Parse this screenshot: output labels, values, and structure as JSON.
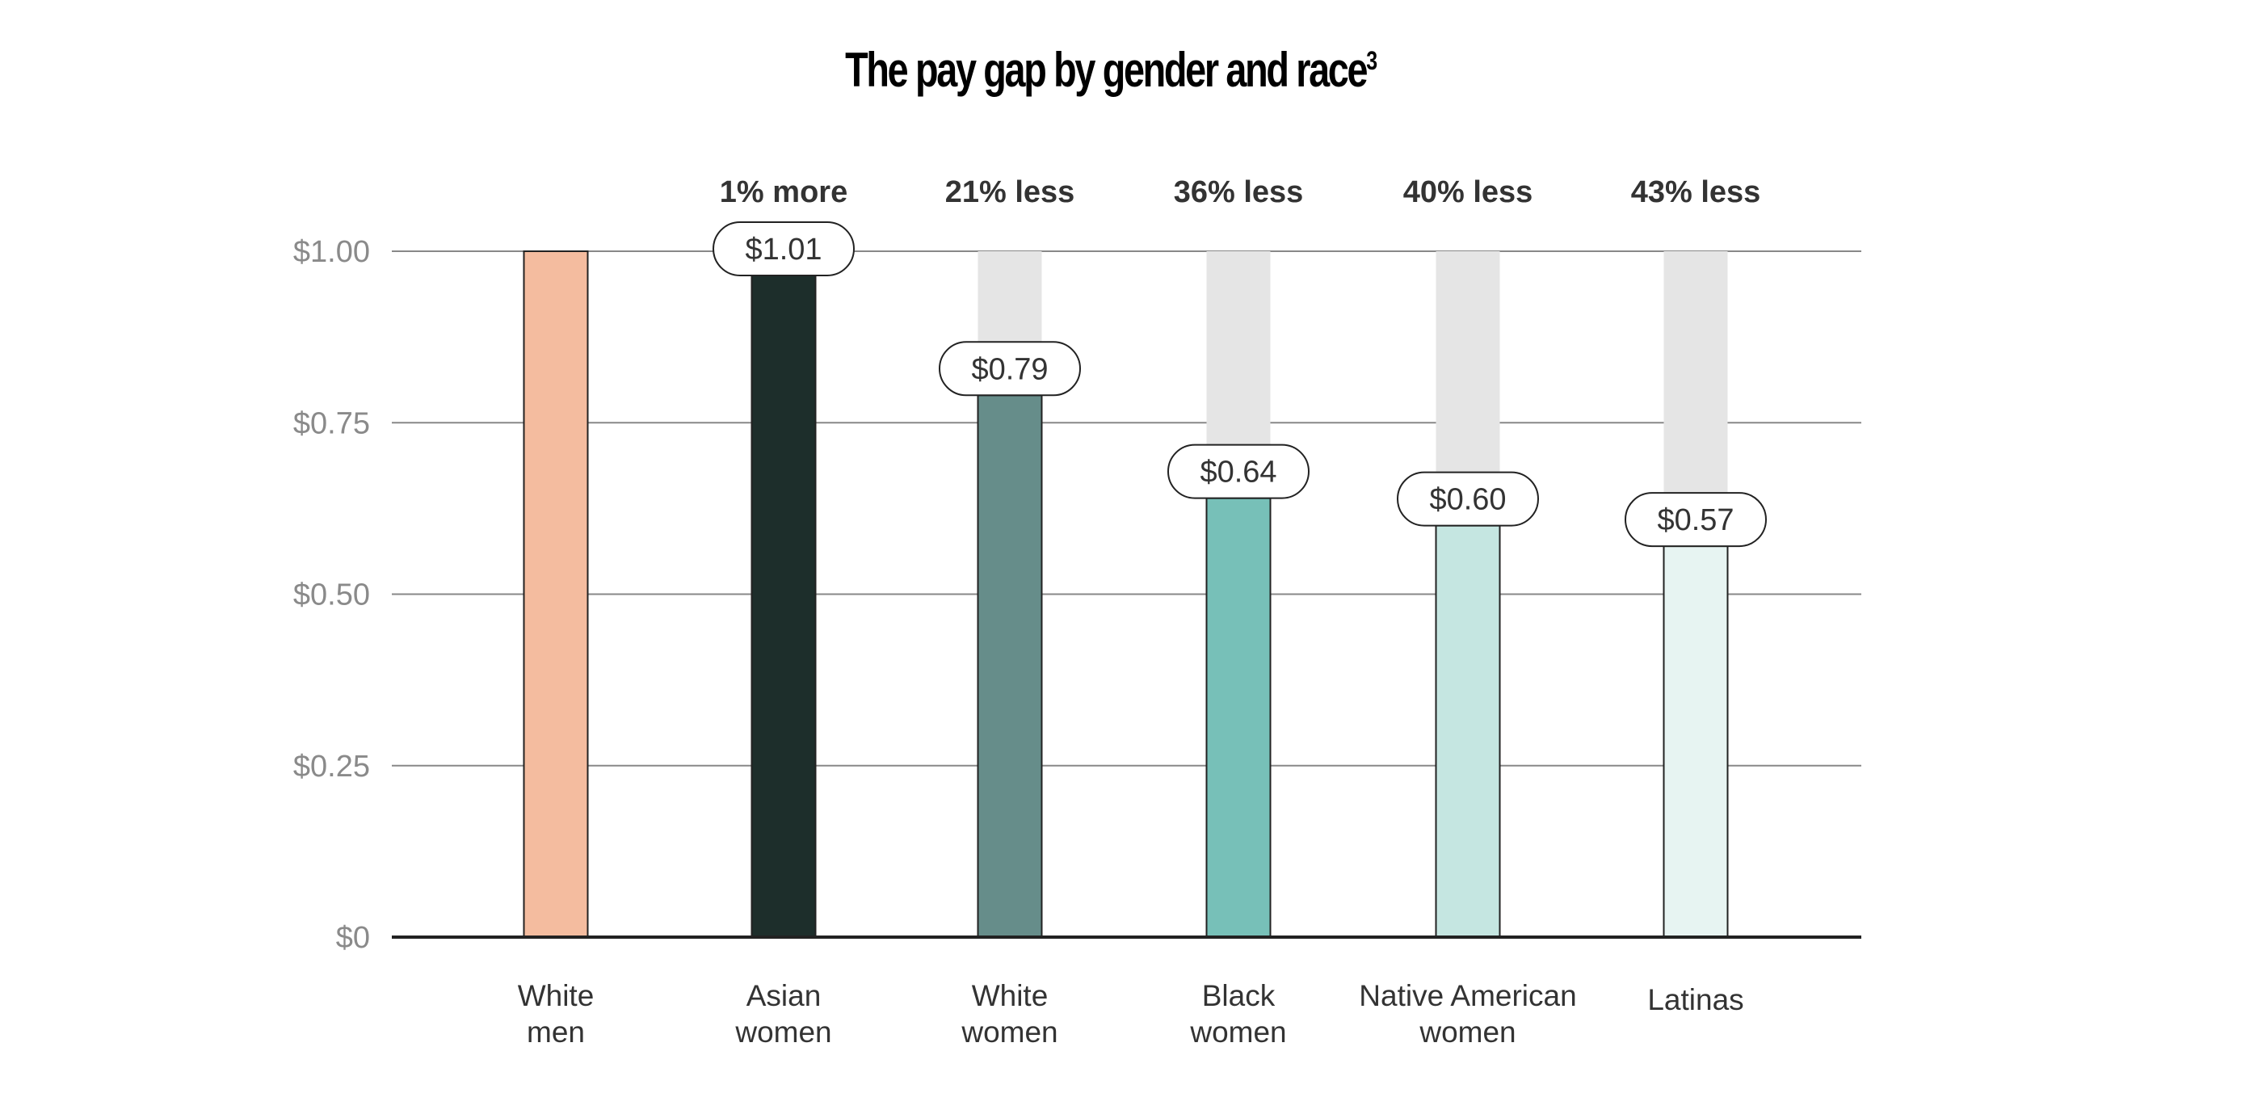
{
  "chart_data": {
    "type": "bar",
    "title": "The pay gap by gender and race",
    "title_superscript": "3",
    "categories": [
      [
        "White",
        "men"
      ],
      [
        "Asian",
        "women"
      ],
      [
        "White",
        "women"
      ],
      [
        "Black",
        "women"
      ],
      [
        "Native American",
        "women"
      ],
      [
        "Latinas"
      ]
    ],
    "values": [
      1.0,
      1.01,
      0.79,
      0.64,
      0.6,
      0.57
    ],
    "value_labels": [
      "",
      "$1.01",
      "$0.79",
      "$0.64",
      "$0.60",
      "$0.57"
    ],
    "difference_labels": [
      "",
      "1% more",
      "21% less",
      "36% less",
      "40% less",
      "43% less"
    ],
    "colors": [
      "#f4bc9f",
      "#1d2e2b",
      "#668d8a",
      "#77c0b8",
      "#c5e6e1",
      "#e7f4f2"
    ],
    "reference_color": "#e5e5e5",
    "yticks": [
      0,
      0.25,
      0.5,
      0.75,
      1.0
    ],
    "ytick_labels": [
      "$0",
      "$0.25",
      "$0.50",
      "$0.75",
      "$1.00"
    ],
    "ylim": [
      0,
      1.0
    ],
    "xlabel": "",
    "ylabel": "",
    "grid": true,
    "legend": "none"
  }
}
